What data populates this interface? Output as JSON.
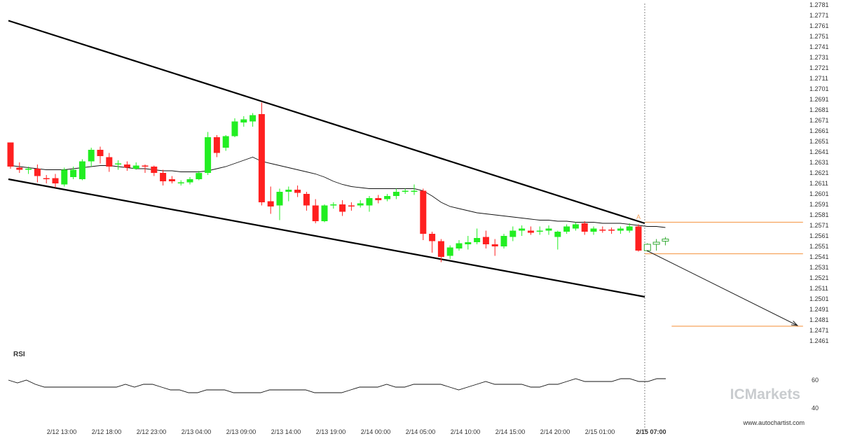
{
  "chart_data": {
    "type": "candlestick",
    "title": "",
    "y_ticks": [
      "1.2781",
      "1.2771",
      "1.2761",
      "1.2751",
      "1.2741",
      "1.2731",
      "1.2721",
      "1.2711",
      "1.2701",
      "1.2691",
      "1.2681",
      "1.2671",
      "1.2661",
      "1.2651",
      "1.2641",
      "1.2631",
      "1.2621",
      "1.2611",
      "1.2601",
      "1.2591",
      "1.2581",
      "1.2571",
      "1.2561",
      "1.2551",
      "1.2541",
      "1.2531",
      "1.2521",
      "1.2511",
      "1.2501",
      "1.2491",
      "1.2481",
      "1.2471",
      "1.2461"
    ],
    "ylim": [
      1.2457,
      1.2785
    ],
    "x_ticks": [
      {
        "label": "2/12 13:00",
        "bar": 5,
        "bold": false
      },
      {
        "label": "2/12 18:00",
        "bar": 10,
        "bold": false
      },
      {
        "label": "2/12 23:00",
        "bar": 15,
        "bold": false
      },
      {
        "label": "2/13 04:00",
        "bar": 20,
        "bold": false
      },
      {
        "label": "2/13 09:00",
        "bar": 25,
        "bold": false
      },
      {
        "label": "2/13 14:00",
        "bar": 30,
        "bold": false
      },
      {
        "label": "2/13 19:00",
        "bar": 35,
        "bold": false
      },
      {
        "label": "2/14 00:00",
        "bar": 40,
        "bold": false
      },
      {
        "label": "2/14 05:00",
        "bar": 45,
        "bold": false
      },
      {
        "label": "2/14 10:00",
        "bar": 50,
        "bold": false
      },
      {
        "label": "2/14 15:00",
        "bar": 55,
        "bold": false
      },
      {
        "label": "2/14 20:00",
        "bar": 60,
        "bold": false
      },
      {
        "label": "2/15 01:00",
        "bar": 65,
        "bold": false
      },
      {
        "label": "2/15 07:00",
        "bar": 70.7,
        "bold": true
      }
    ],
    "candles": [
      {
        "o": 1.265,
        "h": 1.265,
        "l": 1.2625,
        "c": 1.2627
      },
      {
        "o": 1.2626,
        "h": 1.2631,
        "l": 1.2621,
        "c": 1.2624
      },
      {
        "o": 1.2624,
        "h": 1.2627,
        "l": 1.262,
        "c": 1.2625
      },
      {
        "o": 1.2625,
        "h": 1.2629,
        "l": 1.2612,
        "c": 1.2618
      },
      {
        "o": 1.2616,
        "h": 1.2619,
        "l": 1.2611,
        "c": 1.2615
      },
      {
        "o": 1.2616,
        "h": 1.262,
        "l": 1.2607,
        "c": 1.2611
      },
      {
        "o": 1.261,
        "h": 1.2626,
        "l": 1.2608,
        "c": 1.2624
      },
      {
        "o": 1.2617,
        "h": 1.2627,
        "l": 1.2615,
        "c": 1.2624
      },
      {
        "o": 1.2615,
        "h": 1.2634,
        "l": 1.2614,
        "c": 1.2632
      },
      {
        "o": 1.2632,
        "h": 1.2645,
        "l": 1.2627,
        "c": 1.2643
      },
      {
        "o": 1.2643,
        "h": 1.2646,
        "l": 1.263,
        "c": 1.2637
      },
      {
        "o": 1.2636,
        "h": 1.264,
        "l": 1.2622,
        "c": 1.2627
      },
      {
        "o": 1.2629,
        "h": 1.2633,
        "l": 1.2624,
        "c": 1.263
      },
      {
        "o": 1.2629,
        "h": 1.2632,
        "l": 1.2623,
        "c": 1.2626
      },
      {
        "o": 1.2625,
        "h": 1.2631,
        "l": 1.2624,
        "c": 1.2628
      },
      {
        "o": 1.2628,
        "h": 1.2629,
        "l": 1.2621,
        "c": 1.2627
      },
      {
        "o": 1.2627,
        "h": 1.2628,
        "l": 1.2618,
        "c": 1.2621
      },
      {
        "o": 1.2621,
        "h": 1.2624,
        "l": 1.2609,
        "c": 1.2613
      },
      {
        "o": 1.2615,
        "h": 1.2618,
        "l": 1.2611,
        "c": 1.2613
      },
      {
        "o": 1.2611,
        "h": 1.2614,
        "l": 1.2609,
        "c": 1.2612
      },
      {
        "o": 1.2612,
        "h": 1.2617,
        "l": 1.261,
        "c": 1.2615
      },
      {
        "o": 1.2615,
        "h": 1.2623,
        "l": 1.2614,
        "c": 1.2621
      },
      {
        "o": 1.2621,
        "h": 1.266,
        "l": 1.2619,
        "c": 1.2655
      },
      {
        "o": 1.2655,
        "h": 1.2657,
        "l": 1.2636,
        "c": 1.264
      },
      {
        "o": 1.2645,
        "h": 1.2657,
        "l": 1.2642,
        "c": 1.2656
      },
      {
        "o": 1.2656,
        "h": 1.2673,
        "l": 1.2655,
        "c": 1.267
      },
      {
        "o": 1.2669,
        "h": 1.2675,
        "l": 1.2665,
        "c": 1.2672
      },
      {
        "o": 1.267,
        "h": 1.2678,
        "l": 1.2665,
        "c": 1.2676
      },
      {
        "o": 1.2677,
        "h": 1.2688,
        "l": 1.259,
        "c": 1.2593
      },
      {
        "o": 1.2594,
        "h": 1.2608,
        "l": 1.2582,
        "c": 1.2589
      },
      {
        "o": 1.259,
        "h": 1.2606,
        "l": 1.2576,
        "c": 1.2603
      },
      {
        "o": 1.2603,
        "h": 1.2608,
        "l": 1.2594,
        "c": 1.2605
      },
      {
        "o": 1.2605,
        "h": 1.2609,
        "l": 1.2598,
        "c": 1.2602
      },
      {
        "o": 1.2601,
        "h": 1.2603,
        "l": 1.2585,
        "c": 1.259
      },
      {
        "o": 1.259,
        "h": 1.2596,
        "l": 1.2573,
        "c": 1.2575
      },
      {
        "o": 1.2575,
        "h": 1.2591,
        "l": 1.2574,
        "c": 1.259
      },
      {
        "o": 1.259,
        "h": 1.2593,
        "l": 1.2587,
        "c": 1.2591
      },
      {
        "o": 1.2591,
        "h": 1.2595,
        "l": 1.258,
        "c": 1.2584
      },
      {
        "o": 1.259,
        "h": 1.2593,
        "l": 1.2585,
        "c": 1.2589
      },
      {
        "o": 1.259,
        "h": 1.2595,
        "l": 1.2588,
        "c": 1.2592
      },
      {
        "o": 1.259,
        "h": 1.2599,
        "l": 1.2584,
        "c": 1.2597
      },
      {
        "o": 1.2597,
        "h": 1.26,
        "l": 1.2592,
        "c": 1.2595
      },
      {
        "o": 1.2596,
        "h": 1.2601,
        "l": 1.2594,
        "c": 1.2599
      },
      {
        "o": 1.2599,
        "h": 1.2606,
        "l": 1.2596,
        "c": 1.2603
      },
      {
        "o": 1.2603,
        "h": 1.2606,
        "l": 1.2601,
        "c": 1.2604
      },
      {
        "o": 1.2603,
        "h": 1.261,
        "l": 1.26,
        "c": 1.2604
      },
      {
        "o": 1.2604,
        "h": 1.2606,
        "l": 1.2557,
        "c": 1.2563
      },
      {
        "o": 1.2563,
        "h": 1.2565,
        "l": 1.2545,
        "c": 1.2556
      },
      {
        "o": 1.2556,
        "h": 1.2558,
        "l": 1.2536,
        "c": 1.2541
      },
      {
        "o": 1.2542,
        "h": 1.2552,
        "l": 1.2539,
        "c": 1.255
      },
      {
        "o": 1.2549,
        "h": 1.2557,
        "l": 1.2547,
        "c": 1.2554
      },
      {
        "o": 1.2553,
        "h": 1.2561,
        "l": 1.2548,
        "c": 1.2555
      },
      {
        "o": 1.2555,
        "h": 1.2568,
        "l": 1.2553,
        "c": 1.2559
      },
      {
        "o": 1.256,
        "h": 1.2566,
        "l": 1.2549,
        "c": 1.2553
      },
      {
        "o": 1.2553,
        "h": 1.2558,
        "l": 1.2542,
        "c": 1.2551
      },
      {
        "o": 1.2551,
        "h": 1.2563,
        "l": 1.2549,
        "c": 1.2561
      },
      {
        "o": 1.256,
        "h": 1.257,
        "l": 1.2556,
        "c": 1.2566
      },
      {
        "o": 1.2566,
        "h": 1.2571,
        "l": 1.2561,
        "c": 1.2568
      },
      {
        "o": 1.2566,
        "h": 1.257,
        "l": 1.2562,
        "c": 1.2564
      },
      {
        "o": 1.2565,
        "h": 1.257,
        "l": 1.2562,
        "c": 1.2566
      },
      {
        "o": 1.2566,
        "h": 1.2571,
        "l": 1.2562,
        "c": 1.2568
      },
      {
        "o": 1.256,
        "h": 1.2566,
        "l": 1.2548,
        "c": 1.2565
      },
      {
        "o": 1.2565,
        "h": 1.2572,
        "l": 1.2563,
        "c": 1.257
      },
      {
        "o": 1.2568,
        "h": 1.2574,
        "l": 1.2566,
        "c": 1.2572
      },
      {
        "o": 1.2573,
        "h": 1.2575,
        "l": 1.2562,
        "c": 1.2565
      },
      {
        "o": 1.2565,
        "h": 1.257,
        "l": 1.2562,
        "c": 1.2568
      },
      {
        "o": 1.2567,
        "h": 1.257,
        "l": 1.2564,
        "c": 1.2566
      },
      {
        "o": 1.2567,
        "h": 1.2569,
        "l": 1.2563,
        "c": 1.2566
      },
      {
        "o": 1.2566,
        "h": 1.257,
        "l": 1.2563,
        "c": 1.2568
      },
      {
        "o": 1.2566,
        "h": 1.2573,
        "l": 1.2564,
        "c": 1.257
      },
      {
        "o": 1.257,
        "h": 1.2572,
        "l": 1.2546,
        "c": 1.2547
      },
      {
        "o": 1.2547,
        "h": 1.2554,
        "l": 1.2546,
        "c": 1.2553,
        "hollow": true
      },
      {
        "o": 1.2553,
        "h": 1.2558,
        "l": 1.2547,
        "c": 1.2555,
        "hollow": true
      },
      {
        "o": 1.2556,
        "h": 1.256,
        "l": 1.2552,
        "c": 1.2558,
        "hollow": true
      }
    ],
    "moving_average": [
      1.2628,
      1.2627,
      1.2626,
      1.2625,
      1.2624,
      1.2624,
      1.2624,
      1.2625,
      1.2626,
      1.2627,
      1.2628,
      1.2628,
      1.2627,
      1.2626,
      1.2625,
      1.2625,
      1.2624,
      1.2623,
      1.2623,
      1.2622,
      1.2622,
      1.2622,
      1.2623,
      1.2625,
      1.2627,
      1.263,
      1.2633,
      1.2636,
      1.2632,
      1.263,
      1.2628,
      1.2626,
      1.2624,
      1.2622,
      1.262,
      1.2617,
      1.2613,
      1.261,
      1.2608,
      1.2607,
      1.2606,
      1.2606,
      1.2606,
      1.2606,
      1.2606,
      1.2606,
      1.2604,
      1.2599,
      1.2593,
      1.2589,
      1.2587,
      1.2585,
      1.2583,
      1.2582,
      1.2581,
      1.258,
      1.2579,
      1.2578,
      1.2577,
      1.2576,
      1.2576,
      1.2575,
      1.2575,
      1.2574,
      1.2574,
      1.2574,
      1.2573,
      1.2573,
      1.2573,
      1.2572,
      1.2571,
      1.257,
      1.257,
      1.2569
    ],
    "channel_upper": {
      "from": {
        "bar": 0,
        "price": 1.2766
      },
      "to": {
        "bar": 70.7,
        "price": 1.2573
      }
    },
    "channel_lower": {
      "from": {
        "bar": 0,
        "price": 1.2615
      },
      "to": {
        "bar": 70.7,
        "price": 1.2503
      }
    },
    "levels": [
      {
        "price": 1.2574,
        "from_bar": 70.7,
        "to_bar": 86.0
      },
      {
        "price": 1.2544,
        "from_bar": 70.7,
        "to_bar": 86.0
      },
      {
        "price": 1.2475,
        "from_bar": 73.7,
        "to_bar": 86.0
      }
    ],
    "projection": {
      "from": {
        "bar": 70.7,
        "price": 1.2547
      },
      "to": {
        "bar": 86.0,
        "price": 1.2475
      }
    },
    "signal_marker": {
      "bar": 70.7,
      "price": 1.2577,
      "label": "A"
    },
    "rsi": {
      "label": "RSI",
      "ticks": [
        "60",
        "40"
      ],
      "ylim": [
        35,
        75
      ],
      "values": [
        60,
        58,
        60,
        57,
        55,
        55,
        55,
        55,
        55,
        55,
        55,
        55,
        55,
        57,
        55,
        57,
        57,
        55,
        53,
        53,
        51,
        51,
        53,
        53,
        53,
        51,
        51,
        51,
        51,
        53,
        53,
        53,
        53,
        53,
        51,
        51,
        51,
        51,
        53,
        55,
        55,
        55,
        57,
        55,
        55,
        57,
        57,
        57,
        57,
        55,
        53,
        55,
        57,
        59,
        57,
        57,
        57,
        57,
        55,
        55,
        57,
        57,
        59,
        61,
        59,
        59,
        59,
        59,
        61,
        61,
        59,
        59,
        61,
        61
      ],
      "current_bar_marker": 70.7
    },
    "brand": "ICMarkets",
    "credit": "www.autochartist.com"
  }
}
